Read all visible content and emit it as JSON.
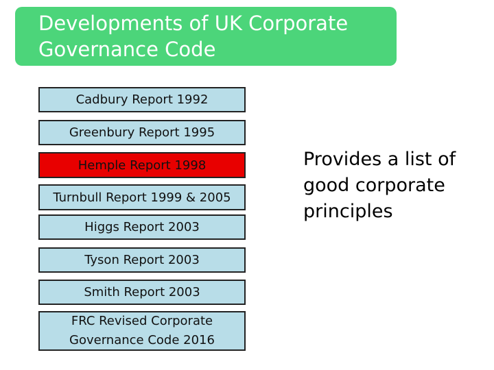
{
  "title": {
    "line1": "Developments of UK Corporate",
    "line2": "Governance Code"
  },
  "reports": [
    {
      "label": "Cadbury Report 1992"
    },
    {
      "label": "Greenbury Report 1995"
    },
    {
      "label": "Hemple Report 1998"
    },
    {
      "label": "Turnbull Report 1999 & 2005"
    },
    {
      "label": "Higgs Report 2003"
    },
    {
      "label": "Tyson Report 2003"
    },
    {
      "label": "Smith Report 2003"
    },
    {
      "line1": "FRC Revised Corporate",
      "line2": "Governance Code 2016"
    }
  ],
  "side_note": {
    "line1": "Provides a list of",
    "line2": "good corporate",
    "line3": "principles"
  },
  "colors": {
    "banner": "#4cd57a",
    "box_fill": "#b8dde8",
    "highlight_fill": "#e80000"
  }
}
